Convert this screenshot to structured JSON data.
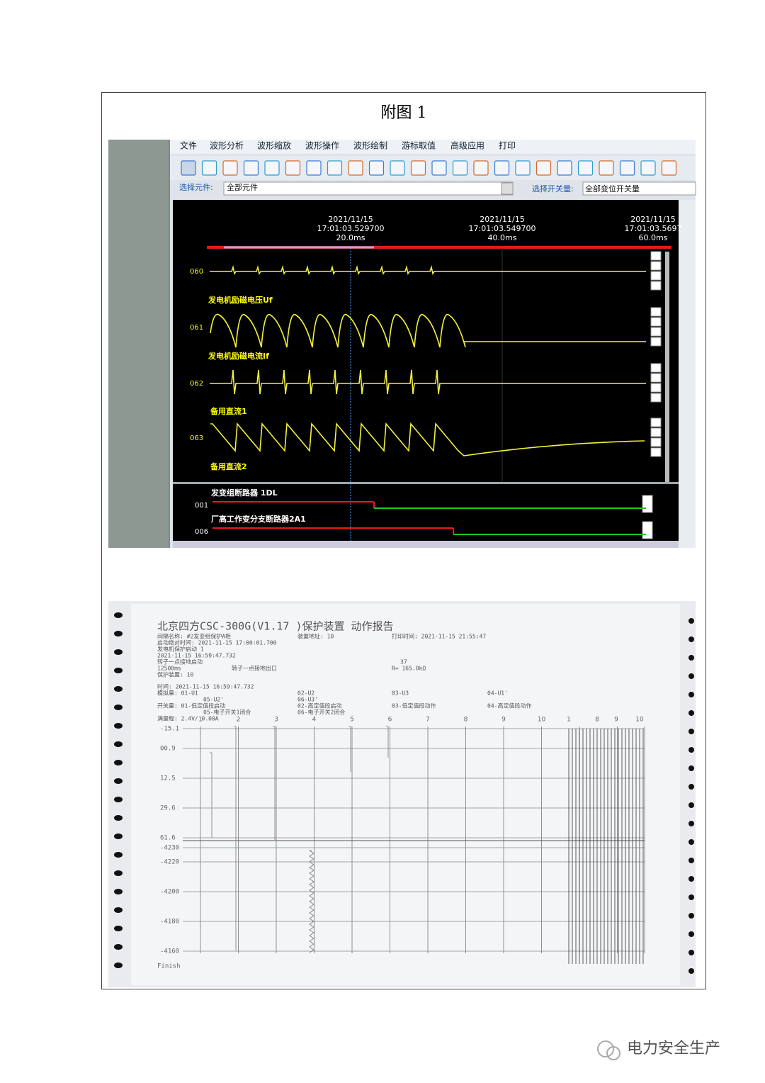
{
  "caption": "附图 1",
  "screen": {
    "menu": [
      "文件",
      "波形分析",
      "波形缩放",
      "波形操作",
      "波形绘制",
      "游标取值",
      "高级应用",
      "打印"
    ],
    "select_element_label": "选择元件:",
    "select_element_value": "全部元件",
    "select_switch_label": "选择开关量:",
    "select_switch_value": "全部变位开关量",
    "cursors": [
      {
        "date": "2021/11/15",
        "time": "17:01:03.529700",
        "offset": "20.0ms"
      },
      {
        "date": "2021/11/15",
        "time": "17:01:03.549700",
        "offset": "40.0ms"
      },
      {
        "date": "2021/11/15",
        "time": "17:01:03.5697",
        "offset": "60.0ms"
      }
    ],
    "analog_ids": [
      "060",
      "061",
      "062",
      "063"
    ],
    "analog_names": [
      "发电机励磁电压Uf",
      "发电机励磁电流If",
      "备用直流1",
      "备用直流2"
    ],
    "digital": [
      {
        "id": "001",
        "name": "发变组断路器 1DL"
      },
      {
        "id": "006",
        "name": "厂高工作变分支断路器2A1"
      }
    ]
  },
  "printout": {
    "title": "北京四方CSC-300G(V1.17 )保护装置   动作报告",
    "lines": [
      [
        "间隔名称: #2发变组保护A柜",
        "装置地址: 10",
        "打印时间: 2021-11-15 21:55:47"
      ],
      [
        "启动绝对时间: 2021-11-15 17:00:01.700"
      ],
      [
        "发电机保护启动  1"
      ],
      [
        "2021-11-15 16:59:47.732"
      ],
      [
        "转子一点接地启动",
        "37"
      ],
      [
        "12500ms",
        "转子一点接地出口",
        "R= 165.0kΩ"
      ],
      [
        "保护装置: 10"
      ],
      [
        "时间:  2021-11-15 16:59:47.732"
      ],
      [
        "模拟量:  01-U1",
        "02-U2",
        "03-U3",
        "04-U1'"
      ],
      [
        "05-U2'",
        "06-U3'"
      ],
      [
        "开关量:  01-低定值段启动",
        "02-高定值段启动",
        "03-低定值段动作",
        "04-高定值段动作"
      ],
      [
        "05-电子开关1闭合",
        "06-电子开关2闭合"
      ],
      [
        "满量程:  2.4V/ 0.00A"
      ]
    ],
    "column_numbers": [
      "1",
      "2",
      "3",
      "4",
      "5",
      "6",
      "7",
      "8",
      "9",
      "10"
    ],
    "switch_numbers": [
      "1",
      "8",
      "9",
      "10"
    ],
    "scale_labels": [
      "-15.1",
      "00.9",
      "12.5",
      "29.6",
      "61.6",
      "-4230",
      "-4220",
      "-4200",
      "-4180",
      "-4160"
    ],
    "finish": "Finish"
  },
  "watermark": "电力安全生产"
}
